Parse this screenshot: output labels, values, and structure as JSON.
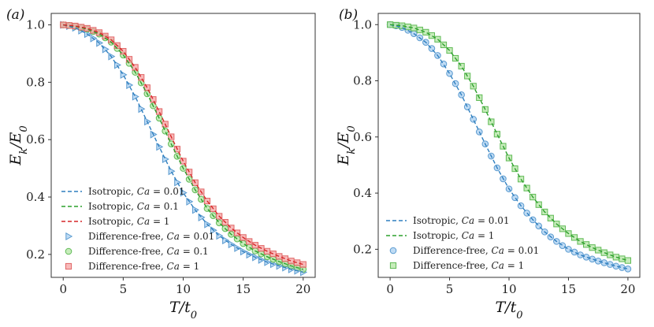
{
  "colors": {
    "iso_001": "#2f7fbf",
    "iso_01": "#2ca02c",
    "iso_1": "#d62728",
    "mk_blue_fill": "#a9cff0",
    "mk_blue_edge": "#5b9bd0",
    "mk_green_fill": "#b4e6a4",
    "mk_green_edge": "#5fba55",
    "mk_red_fill": "#f5a3a3",
    "mk_red_edge": "#e06666"
  },
  "chart_data": [
    {
      "type": "line",
      "panel_label": "(a)",
      "xlabel": "T/t0",
      "ylabel": "Ek/E0",
      "xlim": [
        -1,
        21
      ],
      "ylim": [
        0.12,
        1.04
      ],
      "xticks": [
        "0",
        "5",
        "10",
        "15",
        "20"
      ],
      "yticks": [
        "0.2",
        "0.4",
        "0.6",
        "0.8",
        "1.0"
      ],
      "legend_position": "bottom-left",
      "series": [
        {
          "name": "Isotropic, Ca = 0.01",
          "style": "dashed",
          "color": "#2f7fbf",
          "x": [
            0,
            1,
            2,
            3,
            4,
            5,
            6,
            7,
            8,
            9,
            10,
            11,
            12,
            13,
            14,
            15,
            16,
            17,
            18,
            19,
            20
          ],
          "values": [
            1.0,
            0.99,
            0.968,
            0.937,
            0.89,
            0.826,
            0.75,
            0.663,
            0.575,
            0.49,
            0.415,
            0.355,
            0.305,
            0.265,
            0.235,
            0.21,
            0.19,
            0.173,
            0.16,
            0.148,
            0.138
          ]
        },
        {
          "name": "Isotropic, Ca = 0.1",
          "style": "dashed",
          "color": "#2ca02c",
          "x": [
            0,
            1,
            2,
            3,
            4,
            5,
            6,
            7,
            8,
            9,
            10,
            11,
            12,
            13,
            14,
            15,
            16,
            17,
            18,
            19,
            20
          ],
          "values": [
            1.0,
            0.995,
            0.985,
            0.968,
            0.94,
            0.895,
            0.835,
            0.76,
            0.675,
            0.585,
            0.5,
            0.425,
            0.36,
            0.31,
            0.27,
            0.238,
            0.212,
            0.192,
            0.175,
            0.16,
            0.148
          ]
        },
        {
          "name": "Isotropic, Ca = 1",
          "style": "dashed",
          "color": "#d62728",
          "x": [
            0,
            1,
            2,
            3,
            4,
            5,
            6,
            7,
            8,
            9,
            10,
            11,
            12,
            13,
            14,
            15,
            16,
            17,
            18,
            19,
            20
          ],
          "values": [
            1.0,
            0.996,
            0.988,
            0.973,
            0.948,
            0.908,
            0.852,
            0.781,
            0.698,
            0.61,
            0.525,
            0.45,
            0.386,
            0.333,
            0.292,
            0.259,
            0.232,
            0.211,
            0.193,
            0.177,
            0.165
          ]
        },
        {
          "name": "Difference-free, Ca = 0.01",
          "style": "marker",
          "marker": "triangle-right",
          "color": "#5b9bd0",
          "x": [
            0,
            0.5,
            1,
            1.5,
            2,
            2.5,
            3,
            3.5,
            4,
            4.5,
            5,
            5.5,
            6,
            6.5,
            7,
            7.5,
            8,
            8.5,
            9,
            9.5,
            10,
            10.5,
            11,
            11.5,
            12,
            12.5,
            13,
            13.5,
            14,
            14.5,
            15,
            15.5,
            16,
            16.5,
            17,
            17.5,
            18,
            18.5,
            19,
            19.5,
            20
          ],
          "values": [
            1.0,
            0.996,
            0.99,
            0.98,
            0.968,
            0.953,
            0.937,
            0.915,
            0.89,
            0.86,
            0.826,
            0.79,
            0.75,
            0.707,
            0.663,
            0.618,
            0.575,
            0.532,
            0.49,
            0.451,
            0.415,
            0.384,
            0.355,
            0.329,
            0.305,
            0.284,
            0.265,
            0.249,
            0.235,
            0.222,
            0.21,
            0.199,
            0.19,
            0.181,
            0.173,
            0.166,
            0.16,
            0.154,
            0.148,
            0.143,
            0.138
          ]
        },
        {
          "name": "Difference-free, Ca = 0.1",
          "style": "marker",
          "marker": "circle",
          "color": "#5fba55",
          "x": [
            0,
            0.5,
            1,
            1.5,
            2,
            2.5,
            3,
            3.5,
            4,
            4.5,
            5,
            5.5,
            6,
            6.5,
            7,
            7.5,
            8,
            8.5,
            9,
            9.5,
            10,
            10.5,
            11,
            11.5,
            12,
            12.5,
            13,
            13.5,
            14,
            14.5,
            15,
            15.5,
            16,
            16.5,
            17,
            17.5,
            18,
            18.5,
            19,
            19.5,
            20
          ],
          "values": [
            1.0,
            0.998,
            0.995,
            0.99,
            0.985,
            0.977,
            0.968,
            0.955,
            0.94,
            0.918,
            0.895,
            0.866,
            0.835,
            0.798,
            0.76,
            0.718,
            0.675,
            0.63,
            0.585,
            0.542,
            0.5,
            0.462,
            0.425,
            0.392,
            0.36,
            0.335,
            0.31,
            0.29,
            0.27,
            0.254,
            0.238,
            0.225,
            0.212,
            0.202,
            0.192,
            0.183,
            0.175,
            0.167,
            0.16,
            0.154,
            0.148
          ]
        },
        {
          "name": "Difference-free, Ca = 1",
          "style": "marker",
          "marker": "square",
          "color": "#e06666",
          "x": [
            0,
            0.5,
            1,
            1.5,
            2,
            2.5,
            3,
            3.5,
            4,
            4.5,
            5,
            5.5,
            6,
            6.5,
            7,
            7.5,
            8,
            8.5,
            9,
            9.5,
            10,
            10.5,
            11,
            11.5,
            12,
            12.5,
            13,
            13.5,
            14,
            14.5,
            15,
            15.5,
            16,
            16.5,
            17,
            17.5,
            18,
            18.5,
            19,
            19.5,
            20
          ],
          "values": [
            1.0,
            0.998,
            0.996,
            0.992,
            0.988,
            0.981,
            0.973,
            0.961,
            0.948,
            0.928,
            0.908,
            0.88,
            0.852,
            0.817,
            0.781,
            0.74,
            0.698,
            0.654,
            0.61,
            0.567,
            0.525,
            0.487,
            0.45,
            0.418,
            0.386,
            0.359,
            0.333,
            0.312,
            0.292,
            0.275,
            0.259,
            0.245,
            0.232,
            0.221,
            0.211,
            0.202,
            0.193,
            0.185,
            0.177,
            0.171,
            0.165
          ]
        }
      ]
    },
    {
      "type": "line",
      "panel_label": "(b)",
      "xlabel": "T/t0",
      "ylabel": "Ek/E0",
      "xlim": [
        -1,
        21
      ],
      "ylim": [
        0.1,
        1.04
      ],
      "xticks": [
        "0",
        "5",
        "10",
        "15",
        "20"
      ],
      "yticks": [
        "0.2",
        "0.4",
        "0.6",
        "0.8",
        "1.0"
      ],
      "legend_position": "bottom-left",
      "series": [
        {
          "name": "Isotropic, Ca = 0.01",
          "style": "dashed",
          "color": "#2f7fbf",
          "x": [
            0,
            1,
            2,
            3,
            4,
            5,
            6,
            7,
            8,
            9,
            10,
            11,
            12,
            13,
            14,
            15,
            16,
            17,
            18,
            19,
            20
          ],
          "values": [
            1.0,
            0.99,
            0.968,
            0.937,
            0.89,
            0.826,
            0.75,
            0.663,
            0.575,
            0.49,
            0.415,
            0.355,
            0.305,
            0.262,
            0.228,
            0.2,
            0.18,
            0.165,
            0.152,
            0.14,
            0.13
          ]
        },
        {
          "name": "Isotropic, Ca = 1",
          "style": "dashed",
          "color": "#2ca02c",
          "x": [
            0,
            1,
            2,
            3,
            4,
            5,
            6,
            7,
            8,
            9,
            10,
            11,
            12,
            13,
            14,
            15,
            16,
            17,
            18,
            19,
            20
          ],
          "values": [
            1.0,
            0.996,
            0.988,
            0.973,
            0.948,
            0.908,
            0.852,
            0.781,
            0.698,
            0.61,
            0.525,
            0.45,
            0.386,
            0.333,
            0.29,
            0.256,
            0.228,
            0.206,
            0.188,
            0.172,
            0.16
          ]
        },
        {
          "name": "Difference-free, Ca = 0.01",
          "style": "marker",
          "marker": "circle",
          "color": "#5b9bd0",
          "x": [
            0,
            0.5,
            1,
            1.5,
            2,
            2.5,
            3,
            3.5,
            4,
            4.5,
            5,
            5.5,
            6,
            6.5,
            7,
            7.5,
            8,
            8.5,
            9,
            9.5,
            10,
            10.5,
            11,
            11.5,
            12,
            12.5,
            13,
            13.5,
            14,
            14.5,
            15,
            15.5,
            16,
            16.5,
            17,
            17.5,
            18,
            18.5,
            19,
            19.5,
            20
          ],
          "values": [
            1.0,
            0.996,
            0.99,
            0.98,
            0.968,
            0.953,
            0.937,
            0.915,
            0.89,
            0.86,
            0.826,
            0.79,
            0.75,
            0.707,
            0.663,
            0.618,
            0.575,
            0.532,
            0.49,
            0.451,
            0.415,
            0.384,
            0.355,
            0.329,
            0.305,
            0.283,
            0.262,
            0.244,
            0.228,
            0.213,
            0.2,
            0.19,
            0.18,
            0.172,
            0.165,
            0.158,
            0.152,
            0.146,
            0.14,
            0.135,
            0.13
          ]
        },
        {
          "name": "Difference-free, Ca = 1",
          "style": "marker",
          "marker": "square",
          "color": "#5fba55",
          "x": [
            0,
            0.5,
            1,
            1.5,
            2,
            2.5,
            3,
            3.5,
            4,
            4.5,
            5,
            5.5,
            6,
            6.5,
            7,
            7.5,
            8,
            8.5,
            9,
            9.5,
            10,
            10.5,
            11,
            11.5,
            12,
            12.5,
            13,
            13.5,
            14,
            14.5,
            15,
            15.5,
            16,
            16.5,
            17,
            17.5,
            18,
            18.5,
            19,
            19.5,
            20
          ],
          "values": [
            1.0,
            0.998,
            0.996,
            0.992,
            0.988,
            0.981,
            0.973,
            0.961,
            0.948,
            0.928,
            0.908,
            0.88,
            0.852,
            0.817,
            0.781,
            0.74,
            0.698,
            0.654,
            0.61,
            0.567,
            0.525,
            0.487,
            0.45,
            0.418,
            0.386,
            0.359,
            0.333,
            0.311,
            0.29,
            0.273,
            0.256,
            0.242,
            0.228,
            0.217,
            0.206,
            0.197,
            0.188,
            0.18,
            0.172,
            0.166,
            0.16
          ]
        }
      ]
    }
  ]
}
